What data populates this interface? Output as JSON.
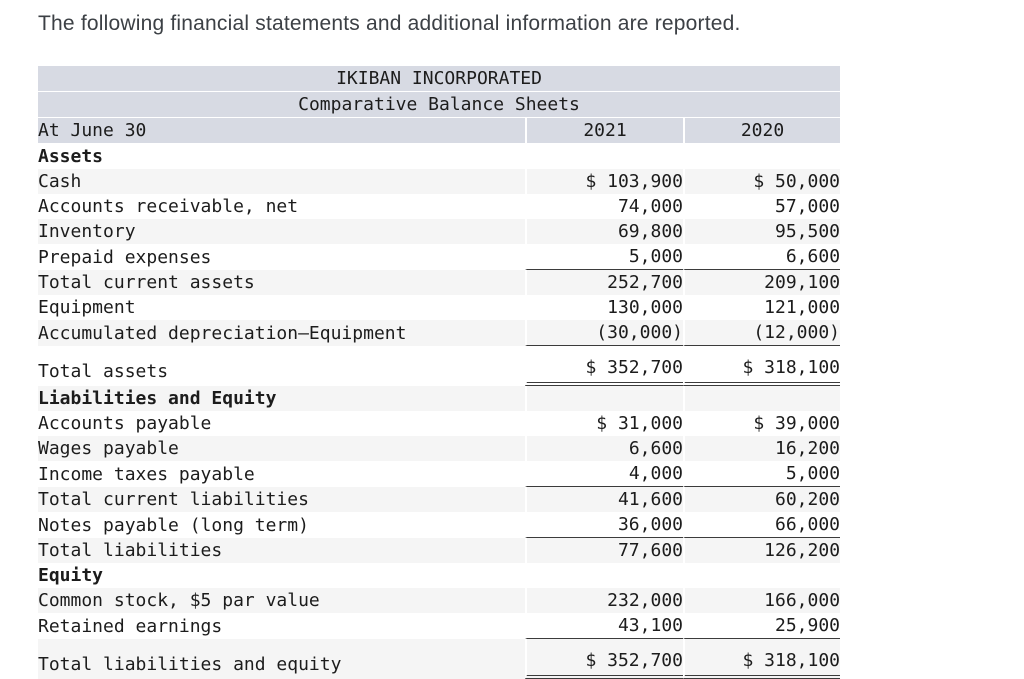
{
  "intro": "The following financial statements and additional information are reported.",
  "table": {
    "company": "IKIBAN INCORPORATED",
    "subtitle": "Comparative Balance Sheets",
    "columns": {
      "label": "At June 30",
      "y2021": "2021",
      "y2020": "2020"
    },
    "rows": [
      {
        "label": "Assets",
        "y2021": "",
        "y2020": "",
        "section": true
      },
      {
        "label": "Cash",
        "y2021": "$ 103,900",
        "y2020": "$ 50,000"
      },
      {
        "label": "Accounts receivable, net",
        "y2021": "74,000",
        "y2020": "57,000"
      },
      {
        "label": "Inventory",
        "y2021": "69,800",
        "y2020": "95,500"
      },
      {
        "label": "Prepaid expenses",
        "y2021": "5,000",
        "y2020": "6,600",
        "rule": "single"
      },
      {
        "label": "Total current assets",
        "y2021": "252,700",
        "y2020": "209,100"
      },
      {
        "label": "Equipment",
        "y2021": "130,000",
        "y2020": "121,000"
      },
      {
        "label": "Accumulated depreciation—Equipment",
        "y2021": "(30,000)",
        "y2020": "(12,000)",
        "rule": "single"
      },
      {
        "label": "Total assets",
        "y2021": "$ 352,700",
        "y2020": "$ 318,100",
        "rule": "double",
        "tall": true
      },
      {
        "label": "Liabilities and Equity",
        "y2021": "",
        "y2020": "",
        "section": true
      },
      {
        "label": "Accounts payable",
        "y2021": "$ 31,000",
        "y2020": "$ 39,000"
      },
      {
        "label": "Wages payable",
        "y2021": "6,600",
        "y2020": "16,200"
      },
      {
        "label": "Income taxes payable",
        "y2021": "4,000",
        "y2020": "5,000",
        "rule": "single"
      },
      {
        "label": "Total current liabilities",
        "y2021": "41,600",
        "y2020": "60,200"
      },
      {
        "label": "Notes payable (long term)",
        "y2021": "36,000",
        "y2020": "66,000",
        "rule": "single"
      },
      {
        "label": "Total liabilities",
        "y2021": "77,600",
        "y2020": "126,200"
      },
      {
        "label": "Equity",
        "y2021": "",
        "y2020": "",
        "section": true
      },
      {
        "label": "Common stock, $5 par value",
        "y2021": "232,000",
        "y2020": "166,000"
      },
      {
        "label": "Retained earnings",
        "y2021": "43,100",
        "y2020": "25,900",
        "rule": "single"
      },
      {
        "label": "Total liabilities and equity",
        "y2021": "$ 352,700",
        "y2020": "$ 318,100",
        "rule": "double",
        "tall": true
      }
    ]
  },
  "colors": {
    "header_bg": "#d7dae3",
    "stripe_bg": "#f5f5f5",
    "rule_line": "#3b3b3b",
    "intro_text": "#3c4045",
    "table_text": "#1c1c1c"
  }
}
